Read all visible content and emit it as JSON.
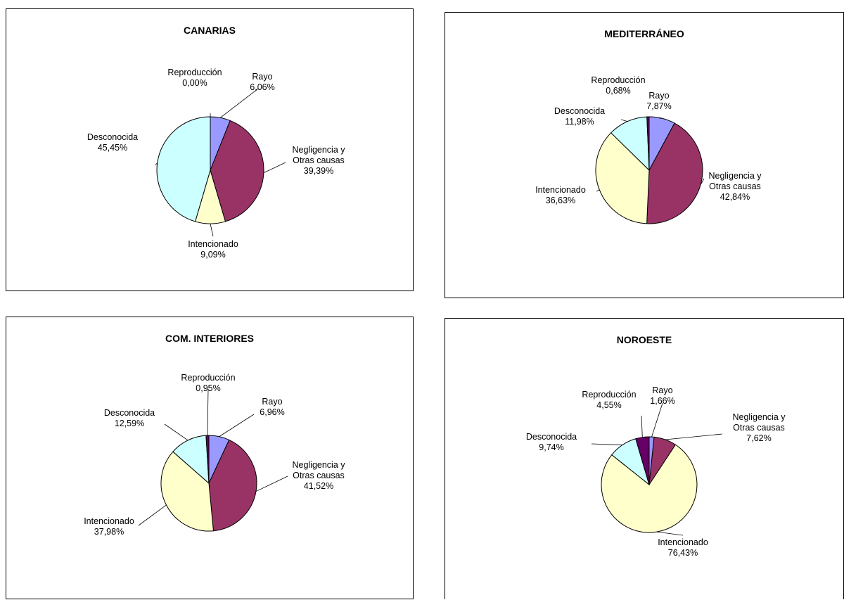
{
  "colors": {
    "Rayo": "#9999ff",
    "Negligencia y Otras causas": "#993366",
    "Intencionado": "#ffffcc",
    "Desconocida": "#ccffff",
    "Reproducción": "#660066"
  },
  "chart_data": [
    {
      "type": "pie",
      "title": "CANARIAS",
      "slices": [
        {
          "label": [
            "Rayo"
          ],
          "value_text": "6,06%",
          "value": 6.06
        },
        {
          "label": [
            "Negligencia y",
            "Otras causas"
          ],
          "value_text": "39,39%",
          "value": 39.39
        },
        {
          "label": [
            "Intencionado"
          ],
          "value_text": "9,09%",
          "value": 9.09
        },
        {
          "label": [
            "Desconocida"
          ],
          "value_text": "45,45%",
          "value": 45.45
        },
        {
          "label": [
            "Reproducción"
          ],
          "value_text": "0,00%",
          "value": 0.0
        }
      ]
    },
    {
      "type": "pie",
      "title": "MEDITERRÁNEO",
      "slices": [
        {
          "label": [
            "Rayo"
          ],
          "value_text": "7,87%",
          "value": 7.87
        },
        {
          "label": [
            "Negligencia y",
            "Otras causas"
          ],
          "value_text": "42,84%",
          "value": 42.84
        },
        {
          "label": [
            "Intencionado"
          ],
          "value_text": "36,63%",
          "value": 36.63
        },
        {
          "label": [
            "Desconocida"
          ],
          "value_text": "11,98%",
          "value": 11.98
        },
        {
          "label": [
            "Reproducción"
          ],
          "value_text": "0,68%",
          "value": 0.68
        }
      ]
    },
    {
      "type": "pie",
      "title": "COM. INTERIORES",
      "slices": [
        {
          "label": [
            "Rayo"
          ],
          "value_text": "6,96%",
          "value": 6.96
        },
        {
          "label": [
            "Negligencia y",
            "Otras causas"
          ],
          "value_text": "41,52%",
          "value": 41.52
        },
        {
          "label": [
            "Intencionado"
          ],
          "value_text": "37,98%",
          "value": 37.98
        },
        {
          "label": [
            "Desconocida"
          ],
          "value_text": "12,59%",
          "value": 12.59
        },
        {
          "label": [
            "Reproducción"
          ],
          "value_text": "0,95%",
          "value": 0.95
        }
      ]
    },
    {
      "type": "pie",
      "title": "NOROESTE",
      "slices": [
        {
          "label": [
            "Rayo"
          ],
          "value_text": "1,66%",
          "value": 1.66
        },
        {
          "label": [
            "Negligencia y",
            "Otras causas"
          ],
          "value_text": "7,62%",
          "value": 7.62
        },
        {
          "label": [
            "Intencionado"
          ],
          "value_text": "76,43%",
          "value": 76.43
        },
        {
          "label": [
            "Desconocida"
          ],
          "value_text": "9,74%",
          "value": 9.74
        },
        {
          "label": [
            "Reproducción"
          ],
          "value_text": "4,55%",
          "value": 4.55
        }
      ]
    }
  ]
}
